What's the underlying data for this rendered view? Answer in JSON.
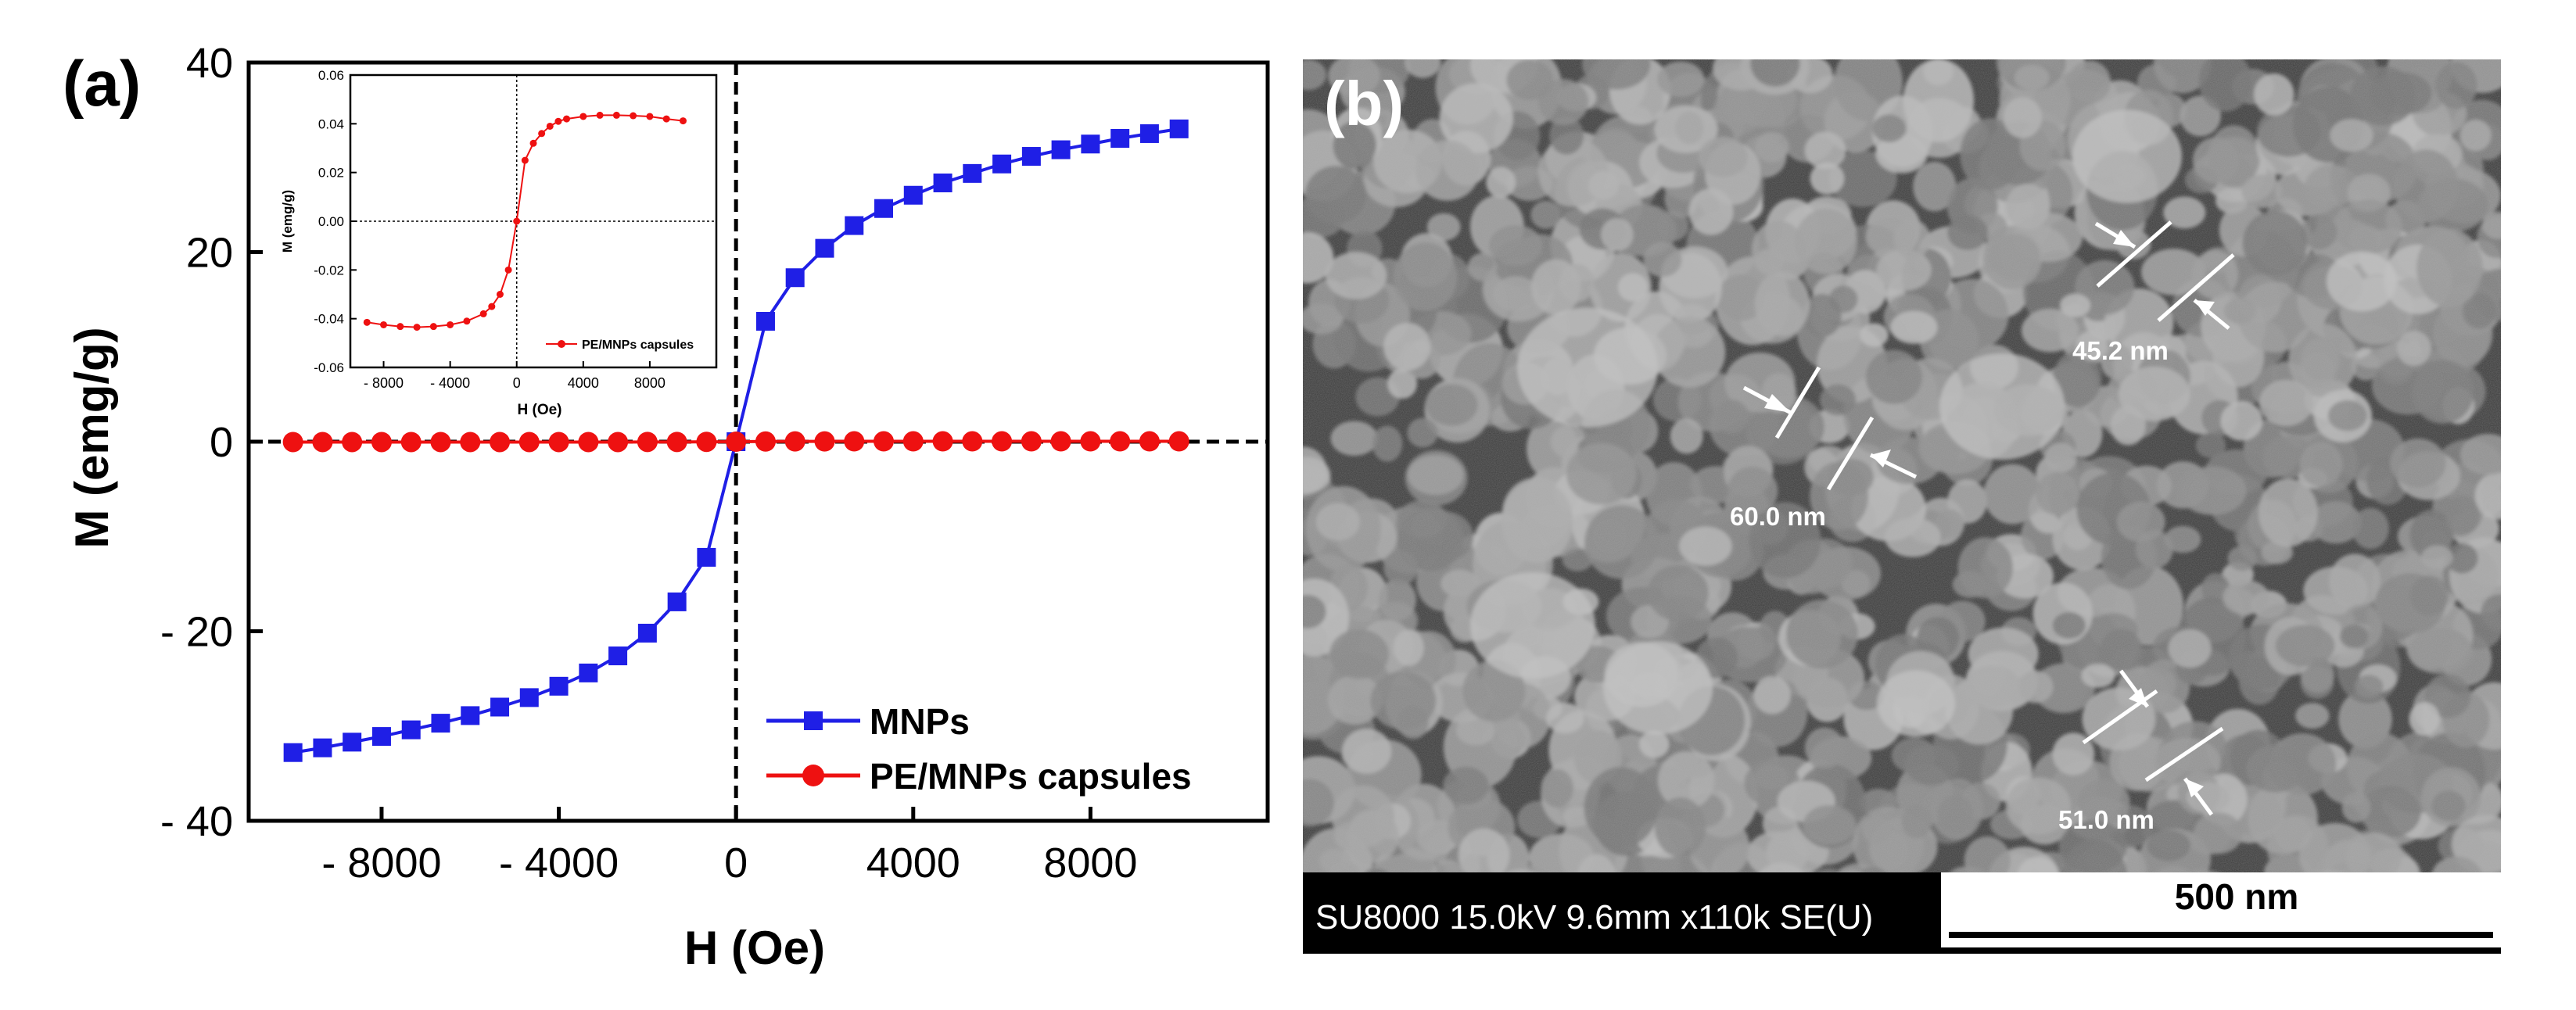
{
  "panel_a": {
    "label": "(a)"
  },
  "panel_b": {
    "label": "(b)",
    "measurements": [
      "60.0 nm",
      "45.2 nm",
      "51.0 nm"
    ],
    "info_text": "SU8000 15.0kV 9.6mm x110k SE(U)",
    "scale_bar_label": "500 nm"
  },
  "colors": {
    "mnps": "#1f1fe6",
    "capsules": "#ee1111",
    "axis": "#000000",
    "sem_background": "#3b3b3b",
    "sem_grain": "#9a9a9a"
  },
  "chart_data": [
    {
      "type": "line",
      "xlabel": "H (Oe)",
      "ylabel": "M (emg/g)",
      "xlim": [
        -11000,
        12000
      ],
      "ylim": [
        -40,
        40
      ],
      "xticks": [
        -8000,
        -4000,
        0,
        4000,
        8000
      ],
      "xtick_labels": [
        "- 8000",
        "- 4000",
        "0",
        "4000",
        "8000"
      ],
      "yticks": [
        -40,
        -20,
        0,
        20,
        40
      ],
      "ytick_labels": [
        "- 40",
        "- 20",
        "0",
        "20",
        "40"
      ],
      "legend_position": "bottom-right",
      "series": [
        {
          "name": "MNPs",
          "marker": "square",
          "x": [
            -10000,
            -9333,
            -8667,
            -8000,
            -7333,
            -6667,
            -6000,
            -5333,
            -4667,
            -4000,
            -3333,
            -2667,
            -2000,
            -1333,
            -667,
            0,
            667,
            1333,
            2000,
            2667,
            3333,
            4000,
            4667,
            5333,
            6000,
            6667,
            7333,
            8000,
            8667,
            9333,
            10000
          ],
          "y": [
            -32.8,
            -32.3,
            -31.7,
            -31.1,
            -30.4,
            -29.7,
            -28.9,
            -28.0,
            -27.0,
            -25.8,
            -24.4,
            -22.6,
            -20.2,
            -16.9,
            -12.2,
            0,
            12.7,
            17.3,
            20.4,
            22.8,
            24.6,
            26.0,
            27.3,
            28.3,
            29.3,
            30.1,
            30.8,
            31.4,
            32.0,
            32.5,
            33.0
          ]
        },
        {
          "name": "PE/MNPs capsules",
          "marker": "circle",
          "x": [
            -10000,
            -9333,
            -8667,
            -8000,
            -7333,
            -6667,
            -6000,
            -5333,
            -4667,
            -4000,
            -3333,
            -2667,
            -2000,
            -1333,
            -667,
            0,
            667,
            1333,
            2000,
            2667,
            3333,
            4000,
            4667,
            5333,
            6000,
            6667,
            7333,
            8000,
            8667,
            9333,
            10000
          ],
          "y": [
            -0.04,
            -0.04,
            -0.04,
            -0.04,
            -0.04,
            -0.04,
            -0.04,
            -0.04,
            -0.04,
            -0.04,
            -0.04,
            -0.04,
            -0.03,
            -0.03,
            -0.02,
            0,
            0.02,
            0.03,
            0.03,
            0.04,
            0.04,
            0.04,
            0.04,
            0.04,
            0.04,
            0.04,
            0.04,
            0.04,
            0.04,
            0.04,
            0.04
          ]
        }
      ]
    },
    {
      "type": "line",
      "inset": true,
      "xlabel": "H (Oe)",
      "ylabel": "M (emg/g)",
      "xlim": [
        -10000,
        12000
      ],
      "ylim": [
        -0.06,
        0.06
      ],
      "xticks": [
        -8000,
        -4000,
        0,
        4000,
        8000
      ],
      "xtick_labels": [
        "- 8000",
        "- 4000",
        "0",
        "4000",
        "8000"
      ],
      "yticks": [
        -0.06,
        -0.04,
        -0.02,
        0.0,
        0.02,
        0.04,
        0.06
      ],
      "ytick_labels": [
        "-0.06",
        "-0.04",
        "-0.02",
        "0.00",
        "0.02",
        "0.04",
        "0.06"
      ],
      "legend_position": "bottom-right",
      "series": [
        {
          "name": "PE/MNPs capsules",
          "marker": "circle",
          "x": [
            -9000,
            -8000,
            -7000,
            -6000,
            -5000,
            -4000,
            -3000,
            -2000,
            -1500,
            -1000,
            -500,
            0,
            500,
            1000,
            1500,
            2000,
            2500,
            3000,
            4000,
            5000,
            6000,
            7000,
            8000,
            9000,
            10000
          ],
          "y": [
            -0.0415,
            -0.0425,
            -0.0432,
            -0.0435,
            -0.0432,
            -0.0425,
            -0.041,
            -0.038,
            -0.035,
            -0.03,
            -0.02,
            0.0,
            0.025,
            0.032,
            0.036,
            0.039,
            0.041,
            0.042,
            0.043,
            0.0435,
            0.0435,
            0.0433,
            0.043,
            0.042,
            0.0412
          ]
        }
      ]
    }
  ]
}
